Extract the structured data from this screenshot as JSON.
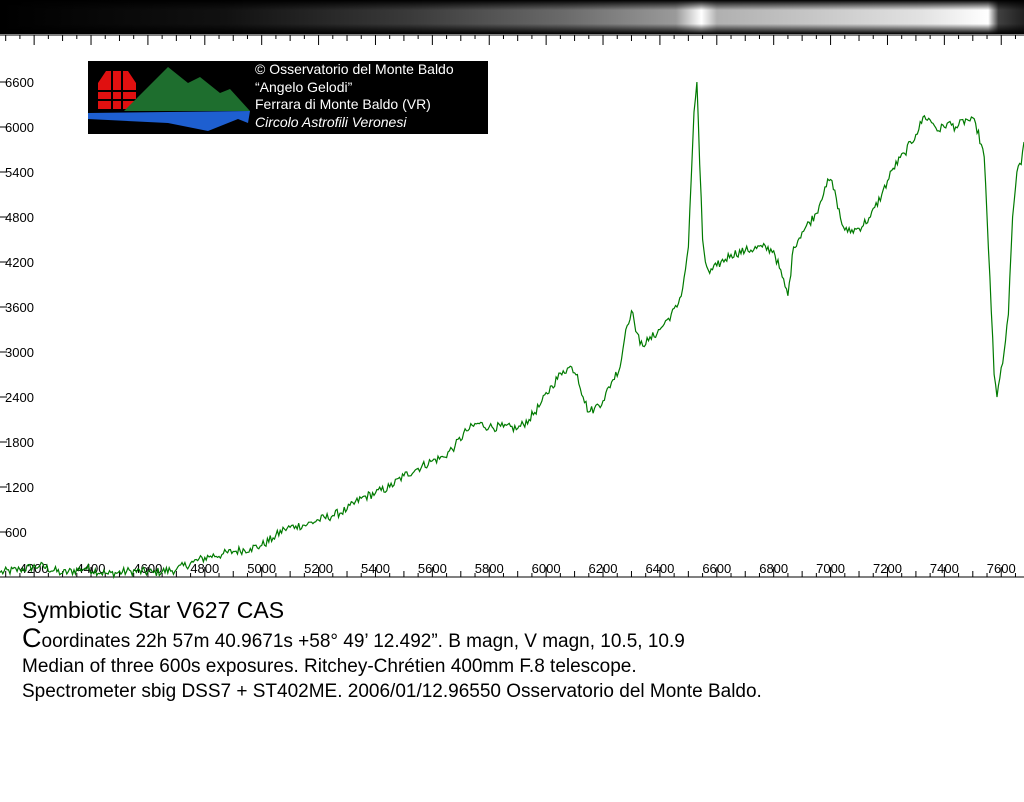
{
  "logo": {
    "line1": "© Osservatorio del Monte Baldo",
    "line2": "“Angelo Gelodi”",
    "line3": "Ferrara di Monte Baldo (VR)",
    "line4": "Circolo Astrofili Veronesi"
  },
  "caption": {
    "title": "Symbiotic Star V627 CAS",
    "coord_initial": "C",
    "coord_rest": "oordinates  22h 57m 40.9671s +58° 49’ 12.492”. B magn, V magn, 10.5, 10.9",
    "line3": "Median of three 600s exposures. Ritchey-Chrétien 400mm F.8 telescope.",
    "line4": "Spectrometer sbig DSS7 + ST402ME. 2006/01/12.96550 Osservatorio del Monte Baldo."
  },
  "chart_data": {
    "type": "line",
    "title": "",
    "xlabel": "",
    "ylabel": "",
    "xlim": [
      4080,
      7680
    ],
    "ylim": [
      0,
      7200
    ],
    "x_ticks": [
      4200,
      4400,
      4600,
      4800,
      5000,
      5200,
      5400,
      5600,
      5800,
      6000,
      6200,
      6400,
      6600,
      6800,
      7000,
      7200,
      7400,
      7600
    ],
    "y_ticks": [
      600,
      1200,
      1800,
      2400,
      3000,
      3600,
      4200,
      4800,
      5400,
      6000,
      6600
    ],
    "grid": false,
    "line_color": "#007a00",
    "series": [
      {
        "x": [
          4080,
          4150,
          4220,
          4300,
          4380,
          4460,
          4540,
          4620,
          4700,
          4760,
          4820,
          4860,
          4900,
          4960,
          5000,
          5040,
          5080,
          5120,
          5160,
          5200,
          5250,
          5300,
          5350,
          5400,
          5450,
          5500,
          5550,
          5600,
          5640,
          5680,
          5720,
          5760,
          5800,
          5850,
          5900,
          5940,
          5980,
          6020,
          6060,
          6090,
          6110,
          6130,
          6150,
          6170,
          6200,
          6230,
          6260,
          6280,
          6300,
          6310,
          6330,
          6360,
          6400,
          6430,
          6460,
          6480,
          6500,
          6510,
          6520,
          6530,
          6540,
          6550,
          6560,
          6575,
          6600,
          6650,
          6700,
          6760,
          6800,
          6830,
          6850,
          6870,
          6900,
          6950,
          6980,
          7000,
          7020,
          7040,
          7060,
          7100,
          7140,
          7180,
          7220,
          7260,
          7300,
          7330,
          7360,
          7380,
          7410,
          7440,
          7480,
          7510,
          7540,
          7560,
          7575,
          7585,
          7595,
          7610,
          7625,
          7640,
          7655,
          7670,
          7680
        ],
        "y": [
          60,
          100,
          150,
          50,
          120,
          40,
          80,
          60,
          100,
          200,
          280,
          300,
          340,
          380,
          420,
          520,
          640,
          680,
          700,
          760,
          820,
          900,
          1050,
          1120,
          1200,
          1350,
          1450,
          1550,
          1600,
          1750,
          1950,
          2050,
          2000,
          2000,
          1980,
          2100,
          2300,
          2550,
          2750,
          2800,
          2700,
          2400,
          2200,
          2250,
          2350,
          2600,
          2800,
          3300,
          3550,
          3400,
          3100,
          3150,
          3300,
          3450,
          3600,
          3850,
          4400,
          5300,
          6200,
          6600,
          5500,
          4500,
          4200,
          4050,
          4150,
          4300,
          4350,
          4400,
          4350,
          4000,
          3750,
          4400,
          4600,
          4850,
          5200,
          5300,
          5050,
          4700,
          4600,
          4650,
          4800,
          5100,
          5450,
          5650,
          5900,
          6150,
          6050,
          5950,
          6050,
          6000,
          6100,
          6050,
          5600,
          4000,
          2700,
          2400,
          2650,
          3000,
          3500,
          4800,
          5400,
          5500,
          5800
        ]
      }
    ]
  }
}
